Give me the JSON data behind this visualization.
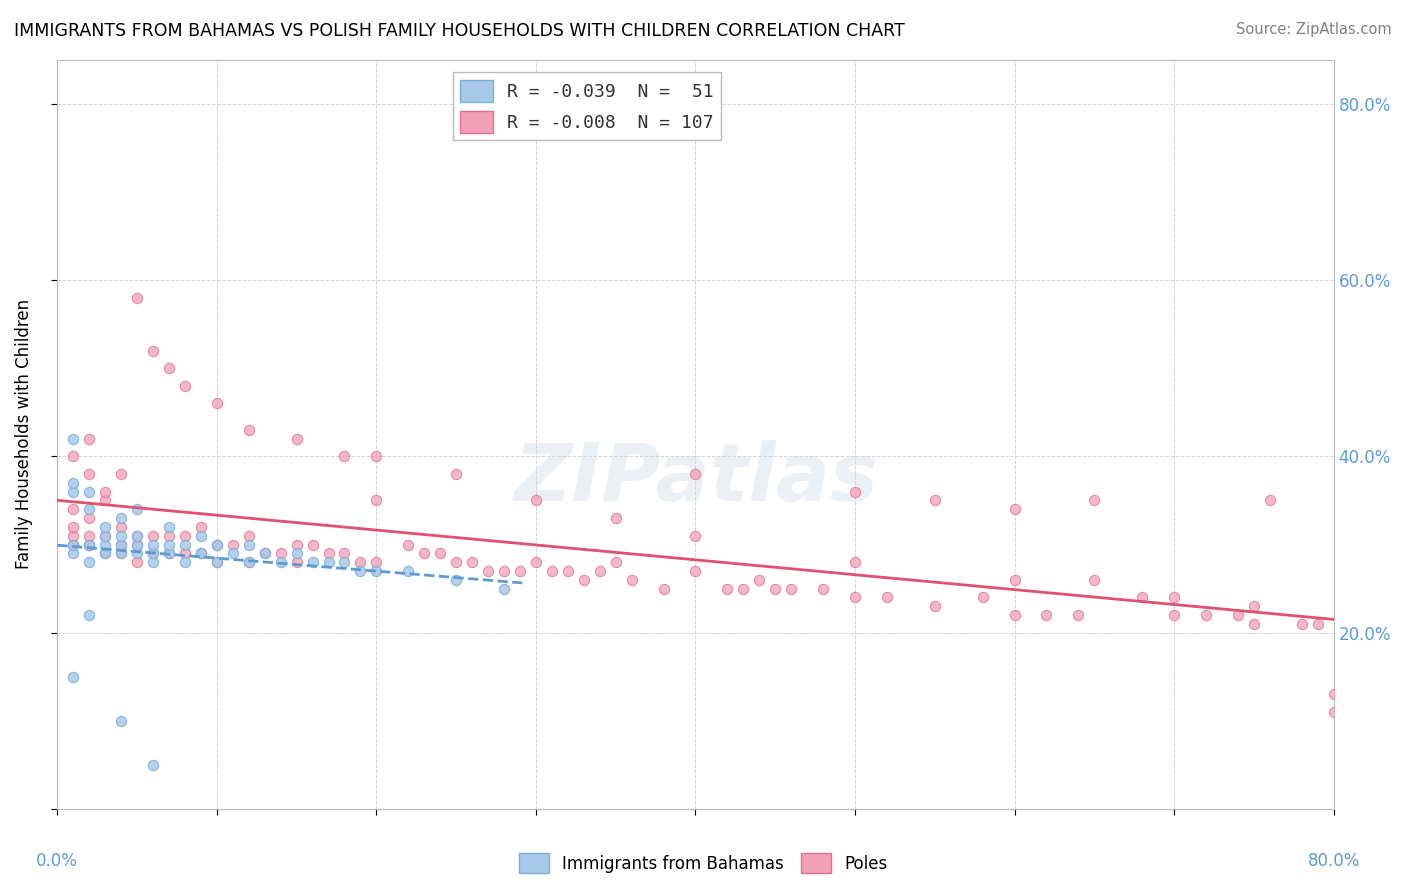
{
  "title": "IMMIGRANTS FROM BAHAMAS VS POLISH FAMILY HOUSEHOLDS WITH CHILDREN CORRELATION CHART",
  "source": "Source: ZipAtlas.com",
  "ylabel": "Family Households with Children",
  "legend_label1": "R = -0.039  N =  51",
  "legend_label2": "R = -0.008  N = 107",
  "legend_color1": "#aec6e8",
  "legend_color2": "#f4a7b9",
  "scatter_blue_x": [
    0.001,
    0.001,
    0.001,
    0.001,
    0.001,
    0.002,
    0.002,
    0.002,
    0.002,
    0.003,
    0.003,
    0.003,
    0.003,
    0.004,
    0.004,
    0.004,
    0.004,
    0.005,
    0.005,
    0.005,
    0.005,
    0.006,
    0.006,
    0.006,
    0.007,
    0.007,
    0.007,
    0.008,
    0.008,
    0.009,
    0.009,
    0.01,
    0.01,
    0.011,
    0.012,
    0.012,
    0.013,
    0.014,
    0.015,
    0.016,
    0.017,
    0.018,
    0.019,
    0.02,
    0.022,
    0.025,
    0.028,
    0.001,
    0.002,
    0.004,
    0.006
  ],
  "scatter_blue_y": [
    0.29,
    0.3,
    0.36,
    0.37,
    0.42,
    0.28,
    0.3,
    0.34,
    0.36,
    0.29,
    0.3,
    0.31,
    0.32,
    0.29,
    0.3,
    0.31,
    0.33,
    0.29,
    0.3,
    0.31,
    0.34,
    0.28,
    0.29,
    0.3,
    0.29,
    0.3,
    0.32,
    0.28,
    0.3,
    0.29,
    0.31,
    0.28,
    0.3,
    0.29,
    0.28,
    0.3,
    0.29,
    0.28,
    0.29,
    0.28,
    0.28,
    0.28,
    0.27,
    0.27,
    0.27,
    0.26,
    0.25,
    0.15,
    0.22,
    0.1,
    0.05
  ],
  "scatter_pink_x": [
    0.001,
    0.001,
    0.001,
    0.001,
    0.002,
    0.002,
    0.002,
    0.002,
    0.003,
    0.003,
    0.003,
    0.004,
    0.004,
    0.004,
    0.005,
    0.005,
    0.005,
    0.006,
    0.006,
    0.007,
    0.007,
    0.008,
    0.008,
    0.009,
    0.009,
    0.01,
    0.01,
    0.011,
    0.012,
    0.012,
    0.013,
    0.014,
    0.015,
    0.015,
    0.016,
    0.017,
    0.018,
    0.019,
    0.02,
    0.02,
    0.022,
    0.023,
    0.024,
    0.025,
    0.026,
    0.027,
    0.028,
    0.029,
    0.03,
    0.031,
    0.032,
    0.033,
    0.034,
    0.035,
    0.036,
    0.038,
    0.04,
    0.04,
    0.042,
    0.043,
    0.044,
    0.045,
    0.046,
    0.048,
    0.05,
    0.05,
    0.052,
    0.055,
    0.055,
    0.058,
    0.06,
    0.06,
    0.062,
    0.064,
    0.065,
    0.068,
    0.07,
    0.072,
    0.074,
    0.075,
    0.076,
    0.078,
    0.079,
    0.08,
    0.001,
    0.002,
    0.003,
    0.004,
    0.005,
    0.006,
    0.007,
    0.008,
    0.01,
    0.012,
    0.015,
    0.018,
    0.02,
    0.025,
    0.03,
    0.035,
    0.04,
    0.05,
    0.06,
    0.065,
    0.07,
    0.075,
    0.08
  ],
  "scatter_pink_y": [
    0.3,
    0.31,
    0.32,
    0.34,
    0.3,
    0.31,
    0.33,
    0.38,
    0.29,
    0.31,
    0.35,
    0.29,
    0.3,
    0.32,
    0.28,
    0.3,
    0.31,
    0.29,
    0.31,
    0.29,
    0.31,
    0.29,
    0.31,
    0.29,
    0.32,
    0.28,
    0.3,
    0.3,
    0.28,
    0.31,
    0.29,
    0.29,
    0.28,
    0.3,
    0.3,
    0.29,
    0.29,
    0.28,
    0.28,
    0.35,
    0.3,
    0.29,
    0.29,
    0.28,
    0.28,
    0.27,
    0.27,
    0.27,
    0.28,
    0.27,
    0.27,
    0.26,
    0.27,
    0.28,
    0.26,
    0.25,
    0.27,
    0.38,
    0.25,
    0.25,
    0.26,
    0.25,
    0.25,
    0.25,
    0.24,
    0.36,
    0.24,
    0.23,
    0.35,
    0.24,
    0.22,
    0.34,
    0.22,
    0.22,
    0.35,
    0.24,
    0.22,
    0.22,
    0.22,
    0.21,
    0.35,
    0.21,
    0.21,
    0.11,
    0.4,
    0.42,
    0.36,
    0.38,
    0.58,
    0.52,
    0.5,
    0.48,
    0.46,
    0.43,
    0.42,
    0.4,
    0.4,
    0.38,
    0.35,
    0.33,
    0.31,
    0.28,
    0.26,
    0.26,
    0.24,
    0.23,
    0.13
  ],
  "xlim": [
    0.0,
    0.08
  ],
  "ylim": [
    0.0,
    0.85
  ],
  "right_yticks": [
    0.2,
    0.4,
    0.6,
    0.8
  ],
  "right_ytick_labels": [
    "20.0%",
    "40.0%",
    "60.0%",
    "80.0%"
  ],
  "background_color": "#ffffff",
  "grid_color": "#c8c8c8",
  "dot_size": 55,
  "blue_dot_color": "#a8c8e8",
  "blue_dot_edge": "#7aafd4",
  "pink_dot_color": "#f4a0b8",
  "pink_dot_edge": "#e07090",
  "blue_line_color": "#5b9bd5",
  "pink_line_color": "#e05070",
  "tick_label_color": "#5b9bd5",
  "watermark": "ZIPatlas"
}
